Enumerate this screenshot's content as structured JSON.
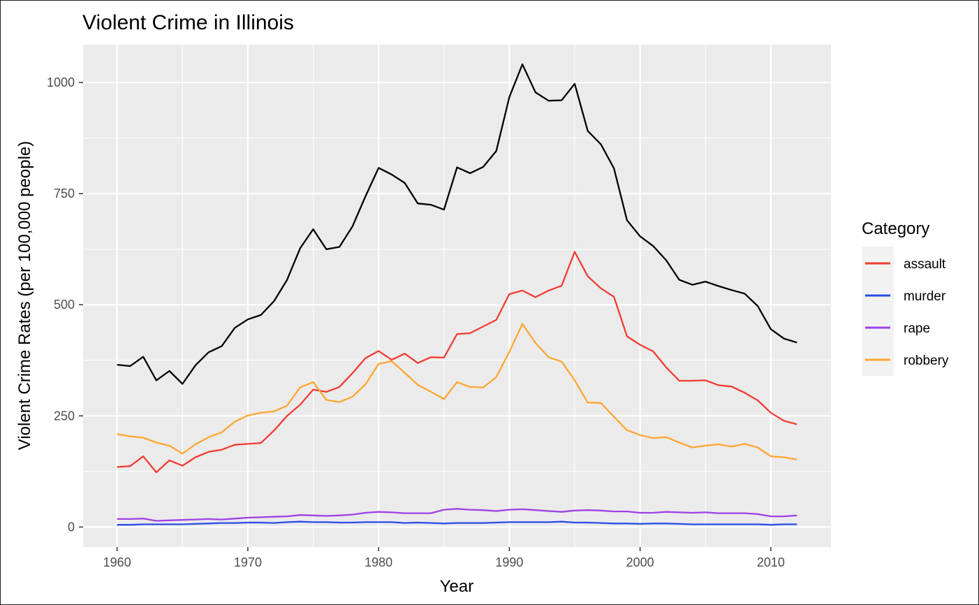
{
  "chart_data": {
    "type": "line",
    "title": "Violent Crime in Illinois",
    "xlabel": "Year",
    "ylabel": "Violent Crime Rates (per 100,000 people)",
    "xlim": [
      1957.4,
      2014.6
    ],
    "ylim": [
      -45,
      1085
    ],
    "x_ticks": [
      1960,
      1970,
      1980,
      1990,
      2000,
      2010
    ],
    "x_tick_labels": [
      "1960",
      "1970",
      "1980",
      "1990",
      "2000",
      "2010"
    ],
    "y_ticks": [
      0,
      250,
      500,
      750,
      1000
    ],
    "y_tick_labels": [
      "0",
      "250",
      "500",
      "750",
      "1000"
    ],
    "grid": true,
    "background": "#ebebeb",
    "legend": {
      "title": "Category",
      "position": "right",
      "entries": [
        "assault",
        "murder",
        "rape",
        "robbery"
      ]
    },
    "x": [
      1960,
      1961,
      1962,
      1963,
      1964,
      1965,
      1966,
      1967,
      1968,
      1969,
      1970,
      1971,
      1972,
      1973,
      1974,
      1975,
      1976,
      1977,
      1978,
      1979,
      1980,
      1981,
      1982,
      1983,
      1984,
      1985,
      1986,
      1987,
      1988,
      1989,
      1990,
      1991,
      1992,
      1993,
      1994,
      1995,
      1996,
      1997,
      1998,
      1999,
      2000,
      2001,
      2002,
      2003,
      2004,
      2005,
      2006,
      2007,
      2008,
      2009,
      2010,
      2011,
      2012
    ],
    "series": [
      {
        "color": "#000000",
        "values": [
          365,
          362,
          383,
          330,
          351,
          322,
          364,
          393,
          407,
          448,
          467,
          477,
          508,
          556,
          627,
          670,
          625,
          630,
          676,
          744,
          808,
          793,
          774,
          728,
          725,
          714,
          809,
          796,
          810,
          846,
          967,
          1041,
          978,
          959,
          960,
          997,
          891,
          861,
          807,
          690,
          654,
          632,
          600,
          556,
          545,
          552,
          542,
          533,
          525,
          497,
          445,
          424,
          415
        ]
      },
      {
        "name": "assault",
        "color": "#f03c32",
        "values": [
          135,
          137,
          159,
          123,
          150,
          138,
          157,
          169,
          174,
          185,
          187,
          189,
          217,
          250,
          275,
          309,
          304,
          315,
          346,
          380,
          396,
          376,
          390,
          369,
          382,
          381,
          434,
          436,
          451,
          466,
          524,
          532,
          517,
          532,
          543,
          619,
          564,
          537,
          518,
          429,
          410,
          395,
          359,
          329,
          329,
          330,
          319,
          316,
          302,
          285,
          257,
          239,
          231
        ]
      },
      {
        "name": "murder",
        "color": "#2a4de6",
        "values": [
          5,
          5,
          6,
          6,
          6,
          6,
          7,
          8,
          9,
          9,
          10,
          10,
          9,
          11,
          12,
          11,
          11,
          10,
          10,
          11,
          11,
          11,
          9,
          10,
          9,
          8,
          9,
          9,
          9,
          10,
          11,
          11,
          11,
          11,
          12,
          10,
          10,
          9,
          8,
          8,
          7,
          8,
          8,
          7,
          6,
          6,
          6,
          6,
          6,
          6,
          5,
          6,
          6
        ]
      },
      {
        "name": "rape",
        "color": "#a040e6",
        "values": [
          18,
          18,
          19,
          14,
          15,
          16,
          17,
          18,
          17,
          19,
          21,
          22,
          23,
          24,
          27,
          26,
          25,
          26,
          28,
          32,
          34,
          33,
          31,
          31,
          31,
          39,
          41,
          39,
          38,
          36,
          39,
          40,
          38,
          36,
          34,
          37,
          38,
          37,
          35,
          35,
          32,
          32,
          34,
          33,
          32,
          33,
          31,
          31,
          31,
          29,
          24,
          24,
          26
        ]
      },
      {
        "name": "robbery",
        "color": "#ffa630",
        "values": [
          209,
          204,
          201,
          190,
          183,
          165,
          186,
          202,
          213,
          237,
          251,
          257,
          260,
          273,
          314,
          326,
          286,
          281,
          293,
          321,
          367,
          373,
          347,
          320,
          304,
          288,
          326,
          315,
          314,
          337,
          394,
          457,
          414,
          382,
          372,
          330,
          280,
          279,
          248,
          218,
          207,
          200,
          202,
          190,
          179,
          183,
          186,
          181,
          187,
          179,
          159,
          157,
          152
        ]
      }
    ]
  }
}
